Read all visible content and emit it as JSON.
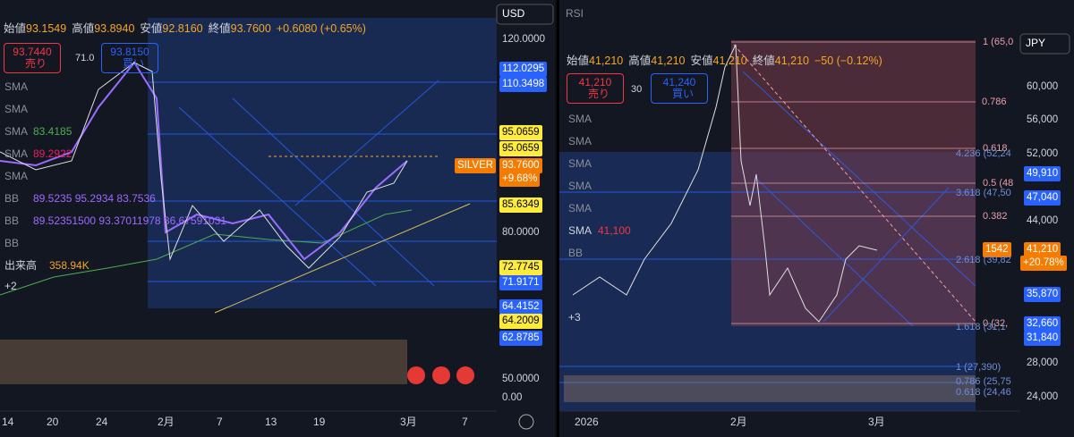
{
  "left": {
    "currency": "USD",
    "ohlc": {
      "o_label": "始値",
      "o": "93.1549",
      "h_label": "高値",
      "h": "93.8940",
      "l_label": "安値",
      "l": "92.8160",
      "c_label": "終値",
      "c": "93.7600",
      "change": "+0.6080 (+0.65%)"
    },
    "sell": {
      "price": "93.7440",
      "label": "売り"
    },
    "spread": "71.0",
    "buy": {
      "price": "93.8150",
      "label": "買い"
    },
    "indicators": [
      {
        "name": "SMA",
        "value": null
      },
      {
        "name": "SMA",
        "value": null
      },
      {
        "name": "SMA",
        "value": "83.4185"
      },
      {
        "name": "SMA",
        "value": "89.2922"
      },
      {
        "name": "SMA",
        "value": null
      },
      {
        "name": "BB",
        "value": "89.5235 95.2934 83.7536"
      },
      {
        "name": "BB",
        "value": "89.52351500 93.37011978 86.67591031"
      },
      {
        "name": "BB",
        "value": null
      }
    ],
    "volume": {
      "label": "出来高",
      "value": "358.94K"
    },
    "more": "+2",
    "symbol": "SILVER",
    "last": "93.7600",
    "last_change": "+9.68%",
    "price_axis": [
      "120.0000",
      "112.0295",
      "110.3498",
      "95.0659",
      "95.0659",
      "85.6349",
      "80.0000",
      "72.7745",
      "71.9171",
      "64.4152",
      "64.2009",
      "62.8785",
      "50.0000",
      "0.00"
    ],
    "x_axis": [
      "14",
      "20",
      "24",
      "2月",
      "7",
      "13",
      "19",
      "3月",
      "7"
    ]
  },
  "right": {
    "rsi": "RSI",
    "currency": "JPY",
    "ohlc": {
      "o_label": "始値",
      "o": "41,210",
      "h_label": "高値",
      "h": "41,210",
      "l_label": "安値",
      "l": "41,210",
      "c_label": "終値",
      "c": "41,210",
      "change": "−50 (−0.12%)"
    },
    "sell": {
      "price": "41,210",
      "label": "売り"
    },
    "spread": "30",
    "buy": {
      "price": "41,240",
      "label": "買い"
    },
    "indicators": [
      {
        "name": "SMA",
        "value": null
      },
      {
        "name": "SMA",
        "value": null
      },
      {
        "name": "SMA",
        "value": null
      },
      {
        "name": "SMA",
        "value": null
      },
      {
        "name": "SMA",
        "value": null
      },
      {
        "name": "SMA",
        "value": "41,100"
      },
      {
        "name": "BB",
        "value": null
      }
    ],
    "more": "+3",
    "timer": "1542",
    "last": "41,210",
    "last_change": "+20.78%",
    "price_axis": [
      "60,000",
      "56,000",
      "52,000",
      "49,910",
      "47,040",
      "44,000",
      "35,870",
      "32,660",
      "31,840",
      "28,000",
      "24,000"
    ],
    "fib": [
      "1 (65,0",
      "0.786",
      "0.618",
      "4.236 (52,24",
      "0.5 (48",
      "3.618 (47,50",
      "0.382",
      "2.618 (39,82",
      "0 (32,",
      "1.618 (31,1",
      "1 (27,390)",
      "0.786 (25,75",
      "0.618 (24,46"
    ],
    "x_axis": [
      "2026",
      "2月",
      "3月"
    ]
  }
}
